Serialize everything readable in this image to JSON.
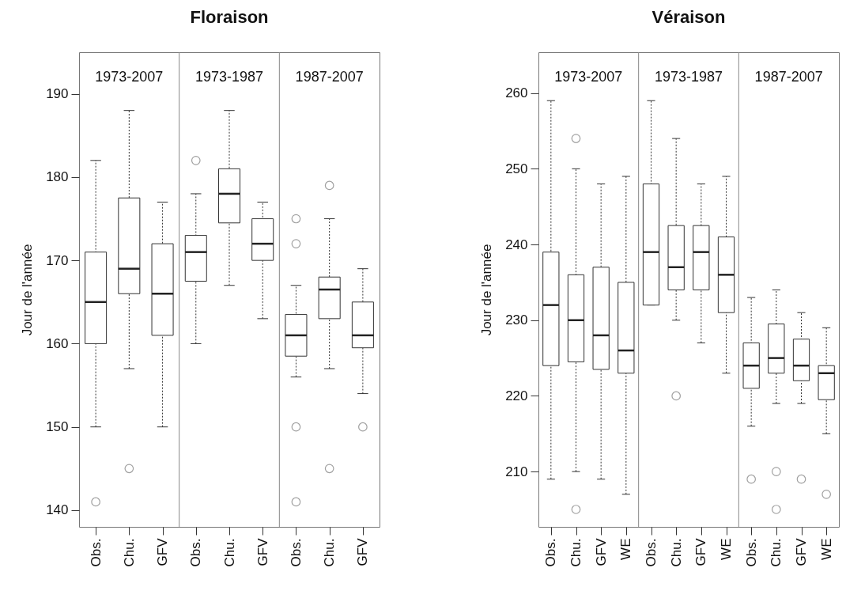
{
  "chart_data": [
    {
      "type": "box",
      "title": "Floraison",
      "ylabel": "Jour de l'année",
      "categories": [
        "Obs.",
        "Chu.",
        "GFV",
        "Obs.",
        "Chu.",
        "GFV",
        "Obs.",
        "Chu.",
        "GFV"
      ],
      "annotations": [
        "1973-2007",
        "1973-1987",
        "1987-2007"
      ],
      "ylim": [
        138,
        195
      ],
      "yticks": [
        140,
        150,
        160,
        170,
        180,
        190
      ],
      "grid": false,
      "boxes": [
        {
          "low": 150,
          "q1": 160,
          "median": 165,
          "q3": 171,
          "high": 182,
          "outliers": [
            141
          ]
        },
        {
          "low": 157,
          "q1": 166,
          "median": 169,
          "q3": 177.5,
          "high": 188,
          "outliers": [
            145
          ]
        },
        {
          "low": 150,
          "q1": 161,
          "median": 166,
          "q3": 172,
          "high": 177
        },
        {
          "low": 160,
          "q1": 167.5,
          "median": 171,
          "q3": 173,
          "high": 178,
          "outliers": [
            182
          ]
        },
        {
          "low": 167,
          "q1": 174.5,
          "median": 178,
          "q3": 181,
          "high": 188
        },
        {
          "low": 163,
          "q1": 170,
          "median": 172,
          "q3": 175,
          "high": 177
        },
        {
          "low": 156,
          "q1": 158.5,
          "median": 161,
          "q3": 163.5,
          "high": 167,
          "outliers": [
            175,
            172,
            150,
            141
          ]
        },
        {
          "low": 157,
          "q1": 163,
          "median": 166.5,
          "q3": 168,
          "high": 175,
          "outliers": [
            179,
            145
          ]
        },
        {
          "low": 154,
          "q1": 159.5,
          "median": 161,
          "q3": 165,
          "high": 169,
          "outliers": [
            150
          ]
        }
      ]
    },
    {
      "type": "box",
      "title": "Véraison",
      "ylabel": "Jour de l'année",
      "categories": [
        "Obs.",
        "Chu.",
        "GFV",
        "WE",
        "Obs.",
        "Chu.",
        "GFV",
        "WE",
        "Obs.",
        "Chu.",
        "GFV",
        "WE"
      ],
      "annotations": [
        "1973-2007",
        "1973-1987",
        "1987-2007"
      ],
      "ylim": [
        202.7,
        265.4
      ],
      "yticks": [
        210,
        220,
        230,
        240,
        250,
        260
      ],
      "grid": false,
      "boxes": [
        {
          "low": 209,
          "q1": 224,
          "median": 232,
          "q3": 239,
          "high": 259
        },
        {
          "low": 210,
          "q1": 224.5,
          "median": 230,
          "q3": 236,
          "high": 250,
          "outliers": [
            254,
            205
          ]
        },
        {
          "low": 209,
          "q1": 223.5,
          "median": 228,
          "q3": 237,
          "high": 248
        },
        {
          "low": 207,
          "q1": 223,
          "median": 226,
          "q3": 235,
          "high": 249
        },
        {
          "low": 232,
          "q1": 232,
          "median": 239,
          "q3": 248,
          "high": 259
        },
        {
          "low": 230,
          "q1": 234,
          "median": 237,
          "q3": 242.5,
          "high": 254,
          "outliers": [
            220
          ]
        },
        {
          "low": 227,
          "q1": 234,
          "median": 239,
          "q3": 242.5,
          "high": 248
        },
        {
          "low": 223,
          "q1": 231,
          "median": 236,
          "q3": 241,
          "high": 249
        },
        {
          "low": 216,
          "q1": 221,
          "median": 224,
          "q3": 227,
          "high": 233,
          "outliers": [
            209
          ]
        },
        {
          "low": 219,
          "q1": 223,
          "median": 225,
          "q3": 229.5,
          "high": 234,
          "outliers": [
            210,
            205
          ]
        },
        {
          "low": 219,
          "q1": 222,
          "median": 224,
          "q3": 227.5,
          "high": 231,
          "outliers": [
            209
          ]
        },
        {
          "low": 215,
          "q1": 219.5,
          "median": 223,
          "q3": 224,
          "high": 229,
          "outliers": [
            207
          ]
        }
      ]
    }
  ]
}
